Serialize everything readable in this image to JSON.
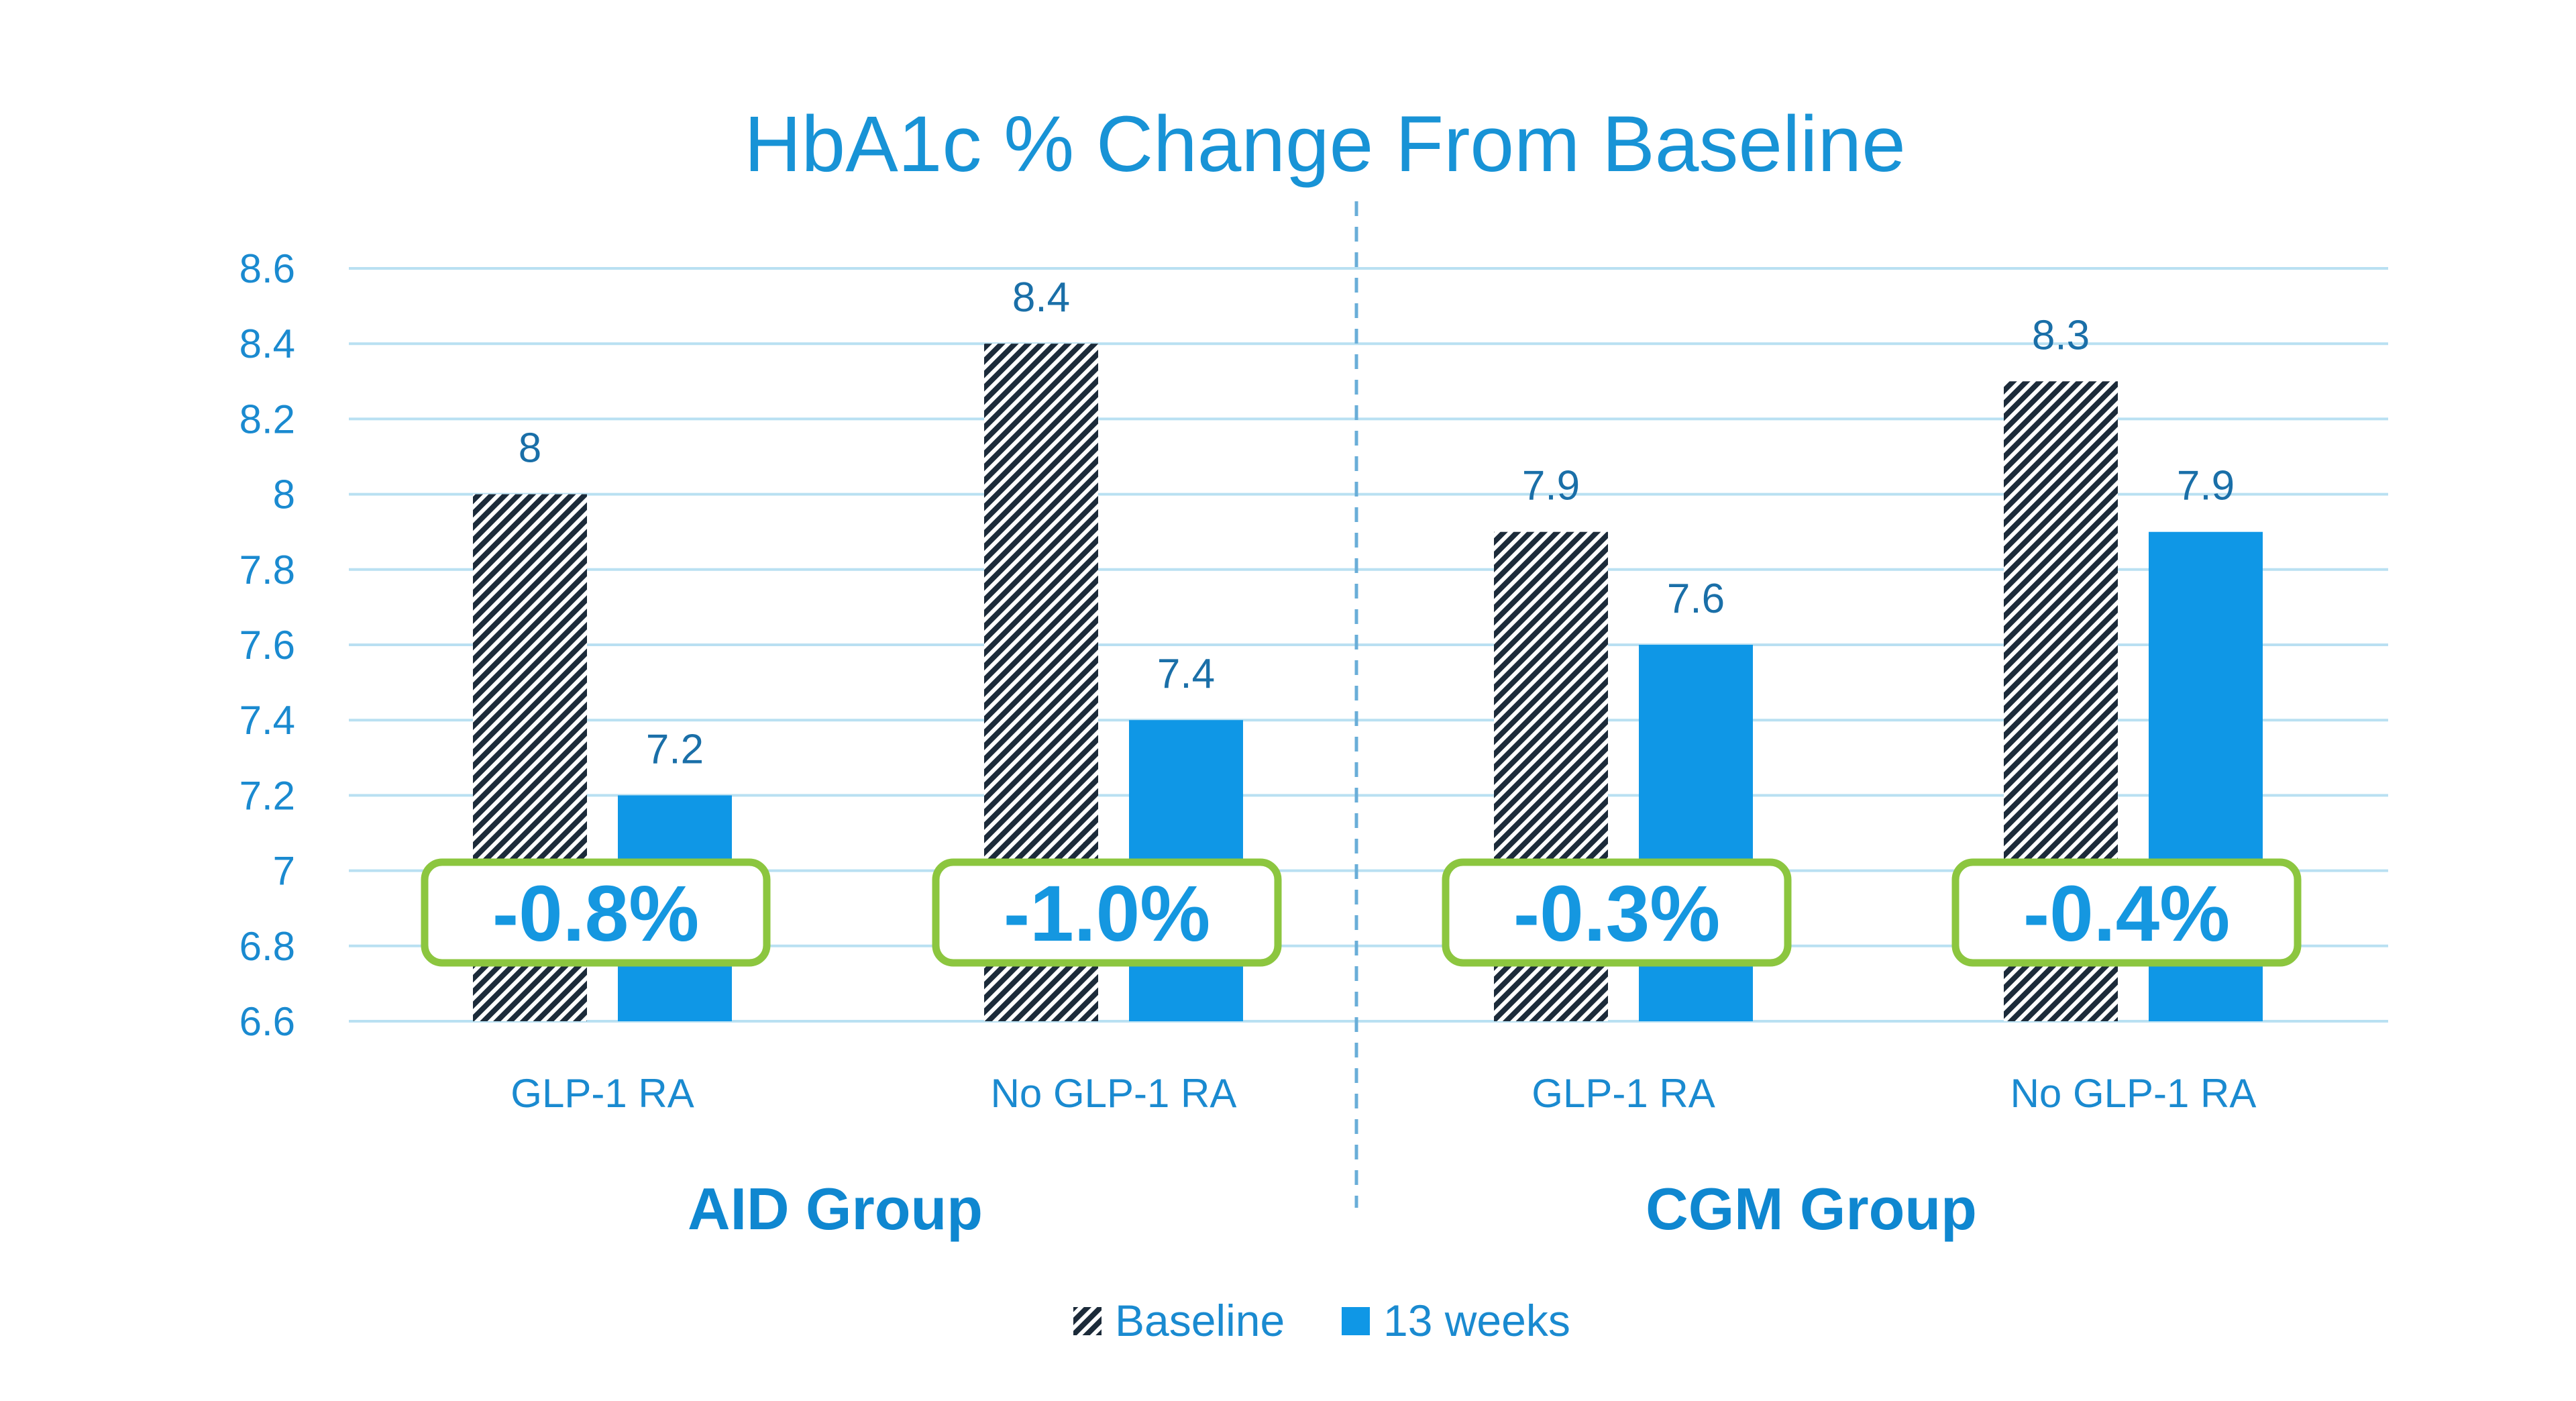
{
  "chart_data": {
    "type": "bar",
    "title": "HbA1c % Change From Baseline",
    "categories": [
      "GLP-1 RA",
      "No GLP-1 RA",
      "GLP-1 RA",
      "No GLP-1 RA"
    ],
    "groups": [
      {
        "label": "AID Group",
        "categories": [
          0,
          1
        ]
      },
      {
        "label": "CGM Group",
        "categories": [
          2,
          3
        ]
      }
    ],
    "series": [
      {
        "name": "Baseline",
        "values": [
          8,
          8.4,
          7.9,
          8.3
        ],
        "labels": [
          "8",
          "8.4",
          "7.9",
          "8.3"
        ],
        "pattern": "diagonal-hatch",
        "color": "#1c2b3a"
      },
      {
        "name": "13 weeks",
        "values": [
          7.2,
          7.4,
          7.6,
          7.9
        ],
        "labels": [
          "7.2",
          "7.4",
          "7.6",
          "7.9"
        ],
        "color": "#0f97e6"
      }
    ],
    "changes": [
      "-0.8%",
      "-1.0%",
      "-0.3%",
      "-0.4%"
    ],
    "ylim": [
      6.6,
      8.6
    ],
    "yticks": [
      "6.6",
      "6.8",
      "7",
      "7.2",
      "7.4",
      "7.6",
      "7.8",
      "8",
      "8.2",
      "8.4",
      "8.6"
    ],
    "grid": true,
    "legend_position": "bottom-center",
    "change_box_color": "#8cc63f",
    "gridline_color": "#b9e0f2",
    "divider_color": "#6aaed8"
  }
}
